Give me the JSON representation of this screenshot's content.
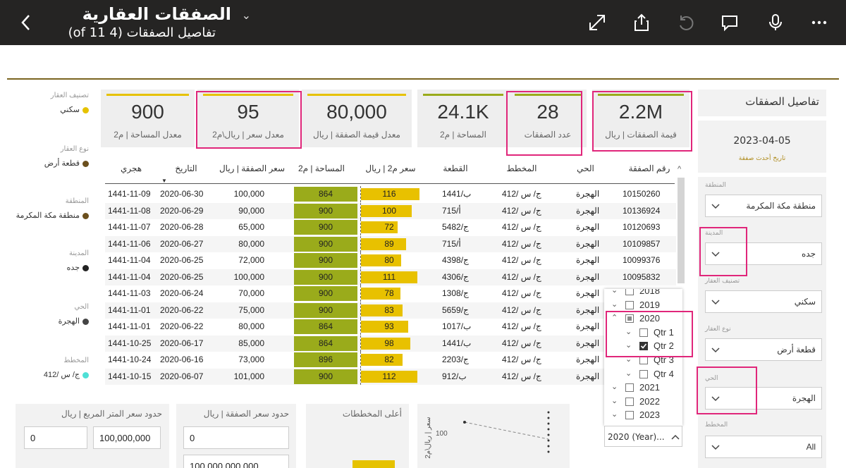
{
  "header": {
    "report_title": "الصفقات العقارية",
    "page_subtitle": "تفاصيل الصفقات (4 of 11)"
  },
  "legend": [
    {
      "title": "تصنيف العقار",
      "item": "سكني",
      "color": "#e6c200"
    },
    {
      "title": "نوع العقار",
      "item": "قطعة أرض",
      "color": "#6b4f1d"
    },
    {
      "title": "المنطقة",
      "item": "منطقة مكة المكرمة",
      "color": "#6b4f1d"
    },
    {
      "title": "المدينة",
      "item": "جده",
      "color": "#222222"
    },
    {
      "title": "الحي",
      "item": "الهجرة",
      "color": "#444444"
    },
    {
      "title": "المخطط",
      "item": "ج/ س /412",
      "color": "#4fe0d6"
    }
  ],
  "kpis": {
    "avg_area": {
      "value": "900",
      "label": "معدل المساحة | م2",
      "bar": "#e6c200"
    },
    "avg_price_m2": {
      "value": "95",
      "label": "معدل سعر | ريال\\م2",
      "bar": "#e6c200"
    },
    "avg_deal_value": {
      "value": "80,000",
      "label": "معدل قيمة الصفقة | ريال",
      "bar": "#e6c200"
    },
    "area": {
      "value": "24.1K",
      "label": "المساحة | م2",
      "bar": "#9aab1b"
    },
    "deal_count": {
      "value": "28",
      "label": "عدد الصفقات",
      "bar": "#9aab1b"
    },
    "deal_value": {
      "value": "2.2M",
      "label": "قيمة الصفقات | ريال",
      "bar": "#9aab1b"
    }
  },
  "right_panel": {
    "title": "تفاصيل الصفقات",
    "latest_date": "2023-04-05",
    "latest_date_label": "تاريخ أحدث صفقة",
    "filters": [
      {
        "label": "المنطقة",
        "value": "منطقة مكة المكرمة"
      },
      {
        "label": "المدينة",
        "value": "جده"
      },
      {
        "label": "تصنيف العقار",
        "value": "سكني"
      },
      {
        "label": "نوع العقار",
        "value": "قطعة أرض"
      },
      {
        "label": "الحي",
        "value": "الهجرة"
      },
      {
        "label": "المخطط",
        "value": "All"
      }
    ]
  },
  "table": {
    "headers": {
      "deal_no": "رقم الصفقة",
      "district": "الحي",
      "plan": "المخطط",
      "plot": "القطعة",
      "price_m2": "سعر م2 | ريال",
      "area": "المساحة | م2",
      "deal_price": "سعر الصفقة | ريال",
      "date": "التاريخ",
      "hijri": "هجري"
    },
    "rows": [
      {
        "hijri": "1441-11-09",
        "date": "2020-06-30",
        "price": "100,000",
        "area": 864,
        "price_m2": 116,
        "plot": "ب/1441",
        "plan": "ج/ س /412",
        "district": "الهجرة",
        "deal_no": "10150260"
      },
      {
        "hijri": "1441-11-08",
        "date": "2020-06-29",
        "price": "90,000",
        "area": 900,
        "price_m2": 100,
        "plot": "715/أ",
        "plan": "ج/ س /412",
        "district": "الهجرة",
        "deal_no": "10136924"
      },
      {
        "hijri": "1441-11-07",
        "date": "2020-06-28",
        "price": "65,000",
        "area": 900,
        "price_m2": 72,
        "plot": "ج/5482",
        "plan": "ج/ س /412",
        "district": "الهجرة",
        "deal_no": "10120693"
      },
      {
        "hijri": "1441-11-06",
        "date": "2020-06-27",
        "price": "80,000",
        "area": 900,
        "price_m2": 89,
        "plot": "715/أ",
        "plan": "ج/ س /412",
        "district": "الهجرة",
        "deal_no": "10109857"
      },
      {
        "hijri": "1441-11-04",
        "date": "2020-06-25",
        "price": "72,000",
        "area": 900,
        "price_m2": 80,
        "plot": "ج/4398",
        "plan": "ج/ س /412",
        "district": "الهجرة",
        "deal_no": "10099376"
      },
      {
        "hijri": "1441-11-04",
        "date": "2020-06-25",
        "price": "100,000",
        "area": 900,
        "price_m2": 111,
        "plot": "ج/4306",
        "plan": "ج/ س /412",
        "district": "الهجرة",
        "deal_no": "10095832"
      },
      {
        "hijri": "1441-11-03",
        "date": "2020-06-24",
        "price": "70,000",
        "area": 900,
        "price_m2": 78,
        "plot": "ج/1308",
        "plan": "ج/ س /412",
        "district": "الهجرة",
        "deal_no": ""
      },
      {
        "hijri": "1441-11-01",
        "date": "2020-06-22",
        "price": "75,000",
        "area": 900,
        "price_m2": 83,
        "plot": "ج/5659",
        "plan": "ج/ س /412",
        "district": "الهجرة",
        "deal_no": ""
      },
      {
        "hijri": "1441-11-01",
        "date": "2020-06-22",
        "price": "80,000",
        "area": 864,
        "price_m2": 93,
        "plot": "ب/1017",
        "plan": "ج/ س /412",
        "district": "الهجرة",
        "deal_no": ""
      },
      {
        "hijri": "1441-10-25",
        "date": "2020-06-17",
        "price": "85,000",
        "area": 864,
        "price_m2": 98,
        "plot": "ب/1441",
        "plan": "ج/ س /412",
        "district": "الهجرة",
        "deal_no": ""
      },
      {
        "hijri": "1441-10-24",
        "date": "2020-06-16",
        "price": "73,000",
        "area": 896,
        "price_m2": 82,
        "plot": "ج/2203",
        "plan": "ج/ س /412",
        "district": "الهجرة",
        "deal_no": ""
      },
      {
        "hijri": "1441-10-15",
        "date": "2020-06-07",
        "price": "101,000",
        "area": 900,
        "price_m2": 112,
        "plot": "ب/912",
        "plan": "ج/ س /412",
        "district": "الهجرة",
        "deal_no": ""
      }
    ]
  },
  "year_slicer": {
    "items": [
      {
        "label": "2018",
        "level": 0,
        "state": "none",
        "expander": "v"
      },
      {
        "label": "2019",
        "level": 0,
        "state": "none",
        "expander": "v"
      },
      {
        "label": "2020",
        "level": 0,
        "state": "partial",
        "expander": "^"
      },
      {
        "label": "Qtr 1",
        "level": 1,
        "state": "none",
        "expander": "v"
      },
      {
        "label": "Qtr 2",
        "level": 1,
        "state": "checked",
        "expander": "v"
      },
      {
        "label": "Qtr 3",
        "level": 1,
        "state": "none",
        "expander": "v"
      },
      {
        "label": "Qtr 4",
        "level": 1,
        "state": "none",
        "expander": "v"
      },
      {
        "label": "2021",
        "level": 0,
        "state": "none",
        "expander": "v"
      },
      {
        "label": "2022",
        "level": 0,
        "state": "none",
        "expander": "v"
      },
      {
        "label": "2023",
        "level": 0,
        "state": "none",
        "expander": "v"
      }
    ],
    "selected": "2020 (Year)..."
  },
  "bottom": {
    "price_m2_limits": {
      "title": "حدود سعر المتر المربع | ريال",
      "min": "0",
      "max": "100,000,000"
    },
    "deal_price_limits": {
      "title": "حدود سعر الصفقة | ريال",
      "min": "0",
      "max": "100,000,000,000"
    },
    "top_plans": {
      "title": "أعلى المخططات"
    },
    "scatter": {
      "axis_label": "سعر | ريال\\م2",
      "tick": "100"
    }
  }
}
